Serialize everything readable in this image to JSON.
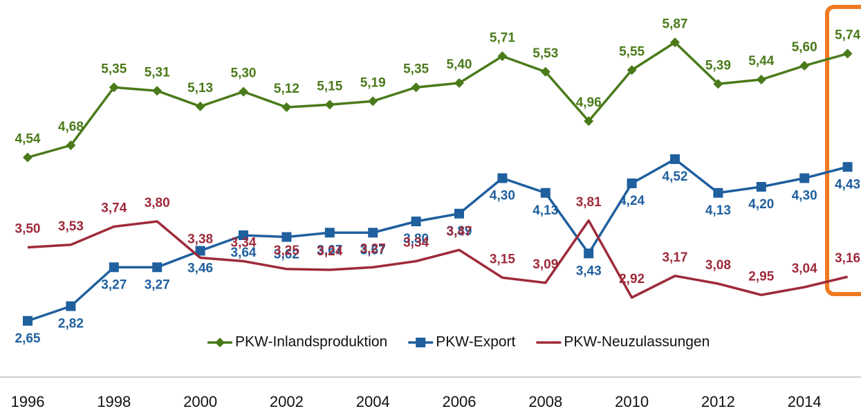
{
  "chart_data": {
    "type": "line",
    "categories": [
      "1996",
      null,
      "1998",
      null,
      "2000",
      null,
      "2002",
      null,
      "2004",
      null,
      "2006",
      null,
      "2008",
      null,
      "2010",
      null,
      "2012",
      null,
      "2014",
      null
    ],
    "ylim": [
      2.2,
      6.36
    ],
    "legend": "bottom",
    "series": [
      {
        "name": "PKW-Inlandsproduktion",
        "color": "#4a7a1a",
        "marker": "diamond",
        "values": [
          4.54,
          4.68,
          5.35,
          5.31,
          5.13,
          5.3,
          5.12,
          5.15,
          5.19,
          5.35,
          5.4,
          5.71,
          5.53,
          4.96,
          5.55,
          5.87,
          5.39,
          5.44,
          5.6,
          5.74
        ],
        "value_labels": [
          "4,54",
          "4,68",
          "5,35",
          "5,31",
          "5,13",
          "5,30",
          "5,12",
          "5,15",
          "5,19",
          "5,35",
          "5,40",
          "5,71",
          "5,53",
          "4,96",
          "5,55",
          "5,87",
          "5,39",
          "5,44",
          "5,60",
          "5,74"
        ]
      },
      {
        "name": "PKW-Export",
        "color": "#1f5f9e",
        "marker": "square",
        "values": [
          2.65,
          2.82,
          3.27,
          3.27,
          3.46,
          3.64,
          3.62,
          3.67,
          3.67,
          3.8,
          3.89,
          4.3,
          4.13,
          3.43,
          4.24,
          4.52,
          4.13,
          4.2,
          4.3,
          4.43
        ],
        "value_labels": [
          "2,65",
          "2,82",
          "3,27",
          "3,27",
          "3,46",
          "3,64",
          "3,62",
          "3,67",
          "3,67",
          "3,80",
          "3,89",
          "4,30",
          "4,13",
          "3,43",
          "4,24",
          "4,52",
          "4,13",
          "4,20",
          "4,30",
          "4,43"
        ]
      },
      {
        "name": "PKW-Neuzulassungen",
        "color": "#9e2a3a",
        "marker": "none",
        "values": [
          3.5,
          3.53,
          3.74,
          3.8,
          3.38,
          3.34,
          3.25,
          3.24,
          3.27,
          3.34,
          3.47,
          3.15,
          3.09,
          3.81,
          2.92,
          3.17,
          3.08,
          2.95,
          3.04,
          3.16
        ],
        "value_labels": [
          "3,50",
          "3,53",
          "3,74",
          "3,80",
          "3,38",
          "3,34",
          "3,25",
          "3,24",
          "3,27",
          "3,34",
          "3,47",
          "3,15",
          "3,09",
          "3,81",
          "2,92",
          "3,17",
          "3,08",
          "2,95",
          "3,04",
          "3,16"
        ]
      }
    ]
  }
}
